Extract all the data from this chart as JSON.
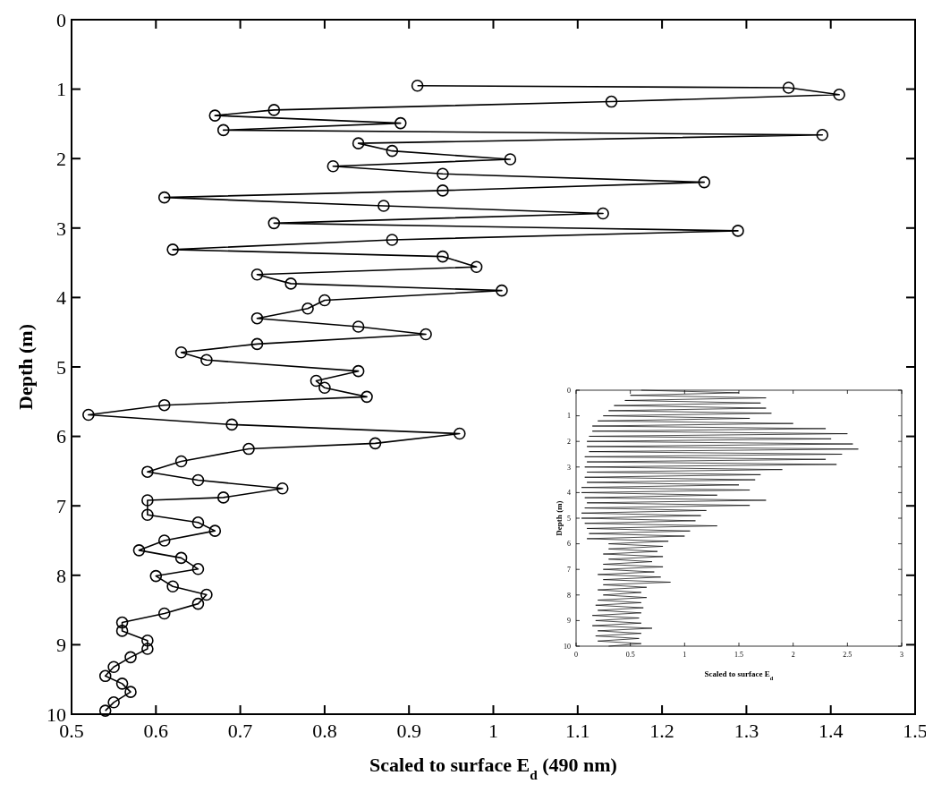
{
  "chart_data": [
    {
      "type": "line",
      "xlabel": "Scaled to surface E$_{d}$ (490 nm)",
      "ylabel": "Depth (m)",
      "xlim": [
        0.5,
        1.5
      ],
      "xticks": [
        0.5,
        0.6,
        0.7,
        0.8,
        0.9,
        1,
        1.1,
        1.2,
        1.3,
        1.4,
        1.5
      ],
      "ylim": [
        10,
        0
      ],
      "yticks": [
        0,
        1,
        2,
        3,
        4,
        5,
        6,
        7,
        8,
        9,
        10
      ],
      "marker": "circle",
      "line_style": "solid",
      "grid": false,
      "series": [
        {
          "color": "#000000",
          "x": [
            0.91,
            1.35,
            1.41,
            1.14,
            0.74,
            0.67,
            0.89,
            0.68,
            1.39,
            0.84,
            0.88,
            1.02,
            0.81,
            0.94,
            1.25,
            0.94,
            0.61,
            0.87,
            1.13,
            0.74,
            1.29,
            0.88,
            0.62,
            0.94,
            0.98,
            0.72,
            0.76,
            1.01,
            0.8,
            0.78,
            0.72,
            0.84,
            0.92,
            0.72,
            0.63,
            0.66,
            0.84,
            0.79,
            0.8,
            0.85,
            0.61,
            0.52,
            0.69,
            0.96,
            0.86,
            0.71,
            0.63,
            0.59,
            0.65,
            0.75,
            0.68,
            0.59,
            0.59,
            0.65,
            0.67,
            0.61,
            0.58,
            0.63,
            0.65,
            0.6,
            0.62,
            0.66,
            0.65,
            0.61,
            0.56,
            0.56,
            0.59,
            0.59,
            0.57,
            0.55,
            0.54,
            0.56,
            0.57,
            0.55,
            0.54
          ],
          "values": [
            0.95,
            0.98,
            1.08,
            1.18,
            1.3,
            1.38,
            1.49,
            1.59,
            1.66,
            1.78,
            1.89,
            2.01,
            2.11,
            2.22,
            2.34,
            2.46,
            2.56,
            2.68,
            2.79,
            2.93,
            3.04,
            3.17,
            3.31,
            3.41,
            3.56,
            3.67,
            3.8,
            3.9,
            4.04,
            4.16,
            4.3,
            4.42,
            4.53,
            4.67,
            4.79,
            4.9,
            5.06,
            5.2,
            5.3,
            5.43,
            5.55,
            5.69,
            5.83,
            5.96,
            6.1,
            6.18,
            6.36,
            6.51,
            6.63,
            6.75,
            6.88,
            6.92,
            7.13,
            7.24,
            7.36,
            7.5,
            7.64,
            7.75,
            7.91,
            8.01,
            8.16,
            8.28,
            8.41,
            8.55,
            8.68,
            8.8,
            8.94,
            9.06,
            9.18,
            9.32,
            9.45,
            9.56,
            9.68,
            9.83,
            9.95
          ]
        }
      ]
    },
    {
      "type": "line",
      "xlabel": "Scaled to surface E$_{d}$",
      "ylabel": "Depth (m)",
      "xlim": [
        0,
        3
      ],
      "xticks": [
        0,
        0.5,
        1,
        1.5,
        2,
        2.5,
        3
      ],
      "ylim": [
        10,
        0
      ],
      "yticks": [
        0,
        1,
        2,
        3,
        4,
        5,
        6,
        7,
        8,
        9,
        10
      ],
      "marker": "none",
      "line_style": "solid",
      "grid": false,
      "series": [
        {
          "color": "#000000",
          "x": [
            0.6,
            1.5,
            0.5,
            1.75,
            0.45,
            1.7,
            0.35,
            1.75,
            0.3,
            1.8,
            0.25,
            1.6,
            0.2,
            2.0,
            0.15,
            2.3,
            0.15,
            2.5,
            0.12,
            2.35,
            0.1,
            2.55,
            0.1,
            2.6,
            0.12,
            2.45,
            0.08,
            2.3,
            0.1,
            2.4,
            0.08,
            1.9,
            0.1,
            1.7,
            0.08,
            1.65,
            0.1,
            1.5,
            0.05,
            1.6,
            0.05,
            1.3,
            0.08,
            1.75,
            0.1,
            1.6,
            0.08,
            1.2,
            0.05,
            1.15,
            0.05,
            1.1,
            0.08,
            1.3,
            0.1,
            1.05,
            0.12,
            1.0,
            0.1,
            0.85,
            0.3,
            0.8,
            0.3,
            0.75,
            0.25,
            0.8,
            0.3,
            0.7,
            0.25,
            0.8,
            0.25,
            0.72,
            0.2,
            0.78,
            0.25,
            0.87,
            0.25,
            0.65,
            0.2,
            0.6,
            0.25,
            0.65,
            0.2,
            0.6,
            0.18,
            0.62,
            0.2,
            0.6,
            0.15,
            0.58,
            0.18,
            0.6,
            0.15,
            0.7,
            0.2,
            0.6,
            0.18,
            0.58,
            0.2,
            0.6,
            0.3
          ],
          "values": [
            0,
            0.1,
            0.2,
            0.3,
            0.4,
            0.5,
            0.6,
            0.7,
            0.8,
            0.9,
            1,
            1.1,
            1.2,
            1.3,
            1.4,
            1.5,
            1.6,
            1.7,
            1.8,
            1.9,
            2,
            2.1,
            2.2,
            2.3,
            2.4,
            2.5,
            2.6,
            2.7,
            2.8,
            2.9,
            3,
            3.1,
            3.2,
            3.3,
            3.4,
            3.5,
            3.6,
            3.7,
            3.8,
            3.9,
            4,
            4.1,
            4.2,
            4.3,
            4.4,
            4.5,
            4.6,
            4.7,
            4.8,
            4.9,
            5,
            5.1,
            5.2,
            5.3,
            5.4,
            5.5,
            5.6,
            5.7,
            5.8,
            5.9,
            6,
            6.1,
            6.2,
            6.3,
            6.4,
            6.5,
            6.6,
            6.7,
            6.8,
            6.9,
            7,
            7.1,
            7.2,
            7.3,
            7.4,
            7.5,
            7.6,
            7.7,
            7.8,
            7.9,
            8,
            8.1,
            8.2,
            8.3,
            8.4,
            8.5,
            8.6,
            8.7,
            8.8,
            8.9,
            9,
            9.1,
            9.2,
            9.3,
            9.4,
            9.5,
            9.6,
            9.7,
            9.8,
            9.9,
            10
          ]
        }
      ]
    }
  ]
}
